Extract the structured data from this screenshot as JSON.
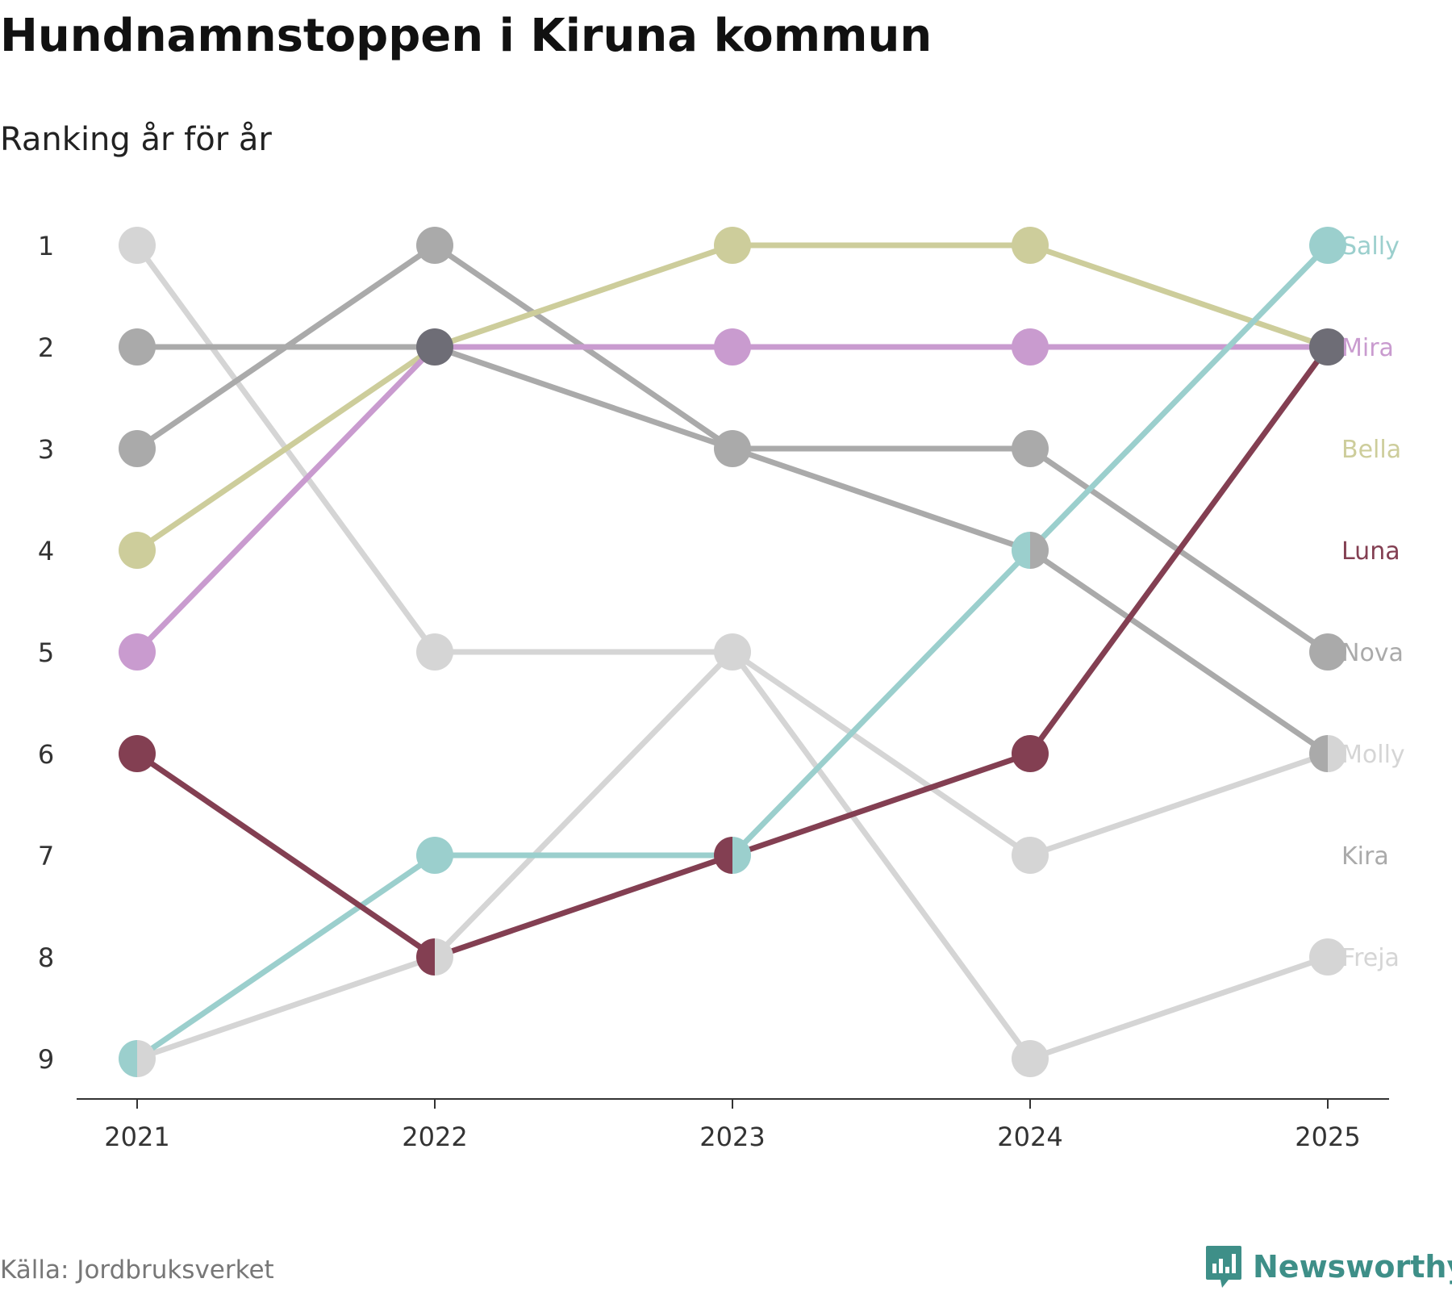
{
  "title": "Hundnamnstoppen i Kiruna kommun",
  "subtitle": "Ranking år för år",
  "source": "Källa: Jordbruksverket",
  "brand": {
    "name": "Newsworthy",
    "icon": "newsworthy-logo-icon",
    "color": "#3e8f88"
  },
  "chart_data": {
    "type": "line",
    "subtype": "bump",
    "title": "Hundnamnstoppen i Kiruna kommun",
    "subtitle": "Ranking år för år",
    "x": [
      "2021",
      "2022",
      "2023",
      "2024",
      "2025"
    ],
    "y_ticks": [
      "1",
      "2",
      "3",
      "4",
      "5",
      "6",
      "7",
      "8",
      "9"
    ],
    "ylim": [
      1,
      9
    ],
    "y_inverted": true,
    "grid": false,
    "series": [
      {
        "name": "Sally",
        "color": "#9bcfcd",
        "values": [
          9,
          7,
          7,
          4,
          1
        ]
      },
      {
        "name": "Mira",
        "color": "#c99bcf",
        "values": [
          5,
          2,
          2,
          2,
          2
        ]
      },
      {
        "name": "Bella",
        "color": "#cdcd9b",
        "values": [
          4,
          2,
          1,
          1,
          2
        ]
      },
      {
        "name": "Luna",
        "color": "#833f52",
        "values": [
          6,
          8,
          7,
          6,
          2
        ]
      },
      {
        "name": "Nova",
        "color": "#aaaaaa",
        "values": [
          2,
          2,
          3,
          3,
          5
        ]
      },
      {
        "name": "Molly",
        "color": "#d5d5d5",
        "values": [
          1,
          5,
          5,
          7,
          6
        ]
      },
      {
        "name": "Kira",
        "color": "#aaaaaa",
        "values": [
          3,
          1,
          3,
          4,
          6
        ]
      },
      {
        "name": "Freja",
        "color": "#d5d5d5",
        "values": [
          9,
          8,
          5,
          9,
          8
        ]
      }
    ],
    "end_labels": [
      {
        "text": "Sally",
        "rank": 1,
        "color": "#9bcfcd"
      },
      {
        "text": "Mira",
        "rank": 2,
        "color": "#c99bcf"
      },
      {
        "text": "Bella",
        "rank": 3,
        "color": "#cdcd9b"
      },
      {
        "text": "Luna",
        "rank": 4,
        "color": "#833f52"
      },
      {
        "text": "Nova",
        "rank": 5,
        "color": "#aaaaaa"
      },
      {
        "text": "Molly",
        "rank": 6,
        "color": "#d5d5d5"
      },
      {
        "text": "Kira",
        "rank": 7,
        "color": "#aaaaaa"
      },
      {
        "text": "Freja",
        "rank": 8,
        "color": "#d5d5d5"
      }
    ],
    "special_markers": [
      {
        "x": "2022",
        "rank": 2,
        "color": "#6e6d76"
      },
      {
        "x": "2025",
        "rank": 2,
        "color": "#6e6d76"
      }
    ]
  }
}
